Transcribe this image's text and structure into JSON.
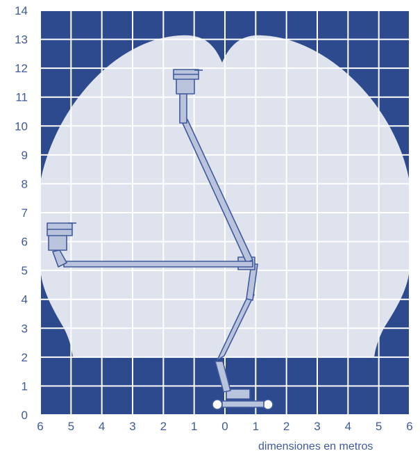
{
  "diagram": {
    "y_ticks": [
      "0",
      "1",
      "2",
      "3",
      "4",
      "5",
      "6",
      "7",
      "8",
      "9",
      "10",
      "11",
      "12",
      "13",
      "14"
    ],
    "x_ticks": [
      "6",
      "5",
      "4",
      "3",
      "2",
      "1",
      "0",
      "1",
      "2",
      "3",
      "4",
      "5",
      "6"
    ],
    "caption": "dimensiones en metros",
    "colors": {
      "background": "#2d4a8e",
      "envelope": "#dfe3ee",
      "grid": "#ffffff",
      "label": "#3f5a9c",
      "machine_fill": "#b9c3dc",
      "machine_stroke": "#3f5a9c"
    }
  }
}
